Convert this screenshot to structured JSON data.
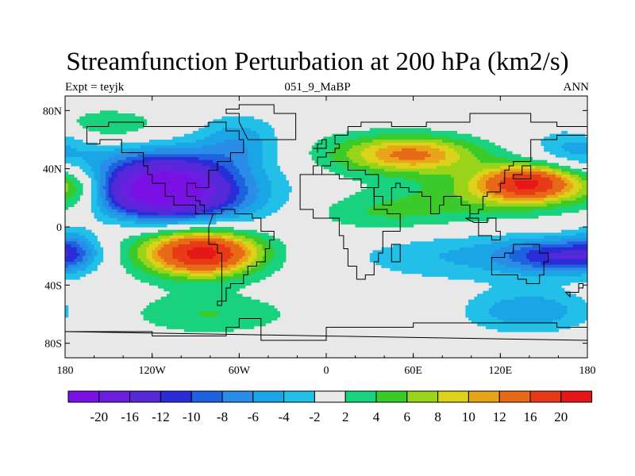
{
  "chart_data": {
    "type": "heatmap",
    "title": "Streamfunction Perturbation at 200 hPa (km2/s)",
    "subtitle_left": "Expt = teyjk",
    "subtitle_center": "051_9_MaBP",
    "subtitle_right": "ANN",
    "xlim": [
      -180,
      180
    ],
    "ylim": [
      -90,
      90
    ],
    "x_ticks": [
      {
        "value": -180,
        "label": "180"
      },
      {
        "value": -120,
        "label": "120W"
      },
      {
        "value": -60,
        "label": "60W"
      },
      {
        "value": 0,
        "label": "0"
      },
      {
        "value": 60,
        "label": "60E"
      },
      {
        "value": 120,
        "label": "120E"
      },
      {
        "value": 180,
        "label": "180"
      }
    ],
    "y_ticks": [
      {
        "value": 80,
        "label": "80N"
      },
      {
        "value": 40,
        "label": "40N"
      },
      {
        "value": 0,
        "label": "0"
      },
      {
        "value": -40,
        "label": "40S"
      },
      {
        "value": -80,
        "label": "80S"
      }
    ],
    "colorbar": {
      "labels": [
        "-20",
        "-16",
        "-12",
        "-10",
        "-8",
        "-6",
        "-4",
        "-2",
        "2",
        "4",
        "6",
        "8",
        "10",
        "12",
        "16",
        "20"
      ],
      "colors": [
        "#7a10e6",
        "#6a1fe0",
        "#5528d8",
        "#2a2cd8",
        "#1f62e0",
        "#2a8ce6",
        "#1aa6e6",
        "#22c0e8",
        "#e8e8e8",
        "#19d27d",
        "#3acb2b",
        "#9ad41a",
        "#dcd21a",
        "#e8a517",
        "#e66a17",
        "#e83a17",
        "#e61717"
      ]
    },
    "field_blobs": [
      {
        "lon": -115,
        "lat": 25,
        "amplitude": -20,
        "sx": 30,
        "sy": 12
      },
      {
        "lon": -90,
        "lat": 20,
        "amplitude": -8,
        "sx": 42,
        "sy": 18
      },
      {
        "lon": -115,
        "lat": 45,
        "amplitude": -5,
        "sx": 40,
        "sy": 10
      },
      {
        "lon": -60,
        "lat": 60,
        "amplitude": -5,
        "sx": 20,
        "sy": 12
      },
      {
        "lon": -85,
        "lat": -18,
        "amplitude": 17,
        "sx": 25,
        "sy": 10
      },
      {
        "lon": -95,
        "lat": -15,
        "amplitude": 6,
        "sx": 42,
        "sy": 15
      },
      {
        "lon": -80,
        "lat": -60,
        "amplitude": 4,
        "sx": 40,
        "sy": 10
      },
      {
        "lon": 60,
        "lat": 50,
        "amplitude": 9,
        "sx": 30,
        "sy": 8
      },
      {
        "lon": 40,
        "lat": 50,
        "amplitude": 4,
        "sx": 45,
        "sy": 12
      },
      {
        "lon": 140,
        "lat": 30,
        "amplitude": 16,
        "sx": 22,
        "sy": 8
      },
      {
        "lon": 125,
        "lat": 25,
        "amplitude": 6,
        "sx": 45,
        "sy": 13
      },
      {
        "lon": 40,
        "lat": 10,
        "amplitude": 4,
        "sx": 40,
        "sy": 10
      },
      {
        "lon": 160,
        "lat": -20,
        "amplitude": -9,
        "sx": 25,
        "sy": 8
      },
      {
        "lon": 110,
        "lat": -20,
        "amplitude": -4.5,
        "sx": 65,
        "sy": 12
      },
      {
        "lon": 140,
        "lat": -58,
        "amplitude": -6,
        "sx": 30,
        "sy": 10
      },
      {
        "lon": -170,
        "lat": 25,
        "amplitude": 5,
        "sx": 15,
        "sy": 10
      },
      {
        "lon": -175,
        "lat": -15,
        "amplitude": -5,
        "sx": 12,
        "sy": 10
      },
      {
        "lon": 170,
        "lat": 55,
        "amplitude": -4.5,
        "sx": 20,
        "sy": 10
      },
      {
        "lon": -150,
        "lat": 70,
        "amplitude": 4,
        "sx": 25,
        "sy": 8
      }
    ]
  }
}
